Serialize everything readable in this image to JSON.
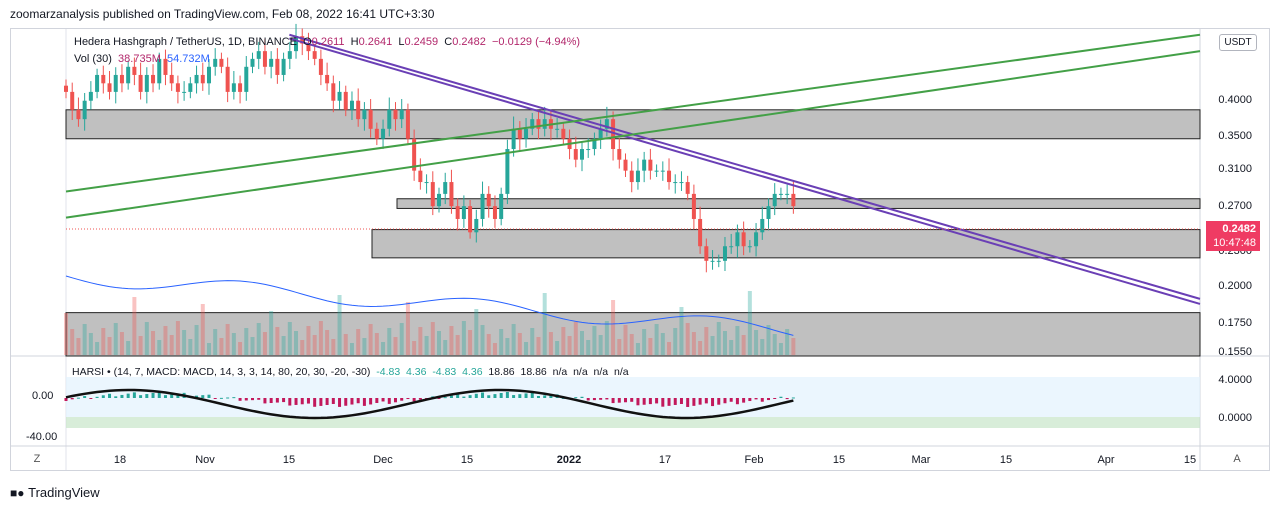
{
  "publish_line": "zoomarzanalysis published on TradingView.com, Feb 08, 2022 16:41 UTC+3:30",
  "legend": {
    "symbol": "Hedera Hashgraph / TetherUS, 1D, BINANCE",
    "open_label": "O",
    "open": "0.2611",
    "high_label": "H",
    "high": "0.2641",
    "low_label": "L",
    "low": "0.2459",
    "close_label": "C",
    "close": "0.2482",
    "change": "−0.0129 (−4.94%)",
    "vol_label": "Vol (30)",
    "vol": "38.735M",
    "vol_ma": "54.732M"
  },
  "indicator_legend": {
    "name": "HARSI",
    "params": "(14, 7, MACD: MACD, 14, 3, 3, 14, 80, 20, 30, -20, -30)",
    "values": [
      "-4.83",
      "4.36",
      "-4.83",
      "4.36",
      "18.86",
      "18.86",
      "n/a",
      "n/a",
      "n/a",
      "n/a"
    ]
  },
  "currency_button": "USDT",
  "price_axis_labels": [
    "0",
    "0.4000",
    "0.3500",
    "0.3100",
    "0.2700",
    "0.2300",
    "0.2000",
    "0.1750",
    "0.1550"
  ],
  "last_price": "0.2482",
  "countdown": "10:47:48",
  "indicator_axis_right": [
    "4.0000",
    "0.0000"
  ],
  "indicator_axis_left": [
    "0.00",
    "-40.00"
  ],
  "time_axis_labels": [
    "18",
    "Nov",
    "15",
    "Dec",
    "15",
    "2022",
    "17",
    "Feb",
    "15",
    "Mar",
    "15",
    "Apr",
    "15"
  ],
  "corner_left": "Z",
  "corner_right": "A",
  "brand": "TradingView",
  "colors": {
    "up": "#26a69a",
    "down": "#ef5350",
    "trend_purple": "#6a3fb5",
    "trend_green": "#43a047",
    "zone_gray": "#b5b5b5",
    "vol_ma": "#2962ff"
  },
  "chart_data": {
    "type": "candlestick",
    "symbol": "HBARUSDT",
    "interval": "1D",
    "ylim": [
      0.155,
      0.44
    ],
    "y_scale": "log",
    "x_start": "2021-10-04",
    "x_end": "2022-04-20",
    "candles": [],
    "series_close_approx": [
      0.36,
      0.34,
      0.33,
      0.35,
      0.36,
      0.38,
      0.37,
      0.36,
      0.38,
      0.37,
      0.39,
      0.38,
      0.36,
      0.38,
      0.37,
      0.4,
      0.38,
      0.37,
      0.36,
      0.36,
      0.37,
      0.38,
      0.37,
      0.39,
      0.4,
      0.39,
      0.36,
      0.37,
      0.36,
      0.39,
      0.4,
      0.41,
      0.39,
      0.4,
      0.38,
      0.4,
      0.41,
      0.43,
      0.42,
      0.41,
      0.4,
      0.38,
      0.37,
      0.35,
      0.36,
      0.34,
      0.35,
      0.33,
      0.34,
      0.32,
      0.31,
      0.32,
      0.34,
      0.33,
      0.34,
      0.31,
      0.28,
      0.27,
      0.27,
      0.25,
      0.26,
      0.27,
      0.25,
      0.24,
      0.25,
      0.23,
      0.24,
      0.26,
      0.25,
      0.24,
      0.26,
      0.3,
      0.32,
      0.31,
      0.32,
      0.33,
      0.32,
      0.33,
      0.32,
      0.32,
      0.31,
      0.3,
      0.29,
      0.3,
      0.3,
      0.31,
      0.32,
      0.33,
      0.3,
      0.29,
      0.28,
      0.27,
      0.28,
      0.29,
      0.28,
      0.28,
      0.28,
      0.27,
      0.27,
      0.27,
      0.26,
      0.24,
      0.22,
      0.21,
      0.21,
      0.21,
      0.22,
      0.22,
      0.23,
      0.22,
      0.22,
      0.23,
      0.24,
      0.25,
      0.26,
      0.26,
      0.26,
      0.25
    ],
    "zones": [
      {
        "from": 0.31,
        "to": 0.34
      },
      {
        "from": 0.2482,
        "to": 0.256
      },
      {
        "from": 0.212,
        "to": 0.232
      },
      {
        "from": 0.155,
        "to": 0.178
      }
    ],
    "trendlines": [
      {
        "color": "purple",
        "points": [
          [
            "2021-11-12",
            0.432
          ],
          [
            "2022-04-20",
            0.186
          ]
        ]
      },
      {
        "color": "purple",
        "points": [
          [
            "2021-11-12",
            0.427
          ],
          [
            "2022-04-20",
            0.183
          ]
        ]
      },
      {
        "color": "green",
        "points": [
          [
            "2021-10-04",
            0.262
          ],
          [
            "2022-04-20",
            0.432
          ]
        ]
      },
      {
        "color": "green",
        "points": [
          [
            "2021-10-04",
            0.241
          ],
          [
            "2022-04-20",
            0.41
          ]
        ]
      }
    ],
    "volume_series": "Vol (30)",
    "indicator": {
      "name": "HARSI",
      "range": [
        -40,
        40
      ],
      "levels": [
        4.0,
        0.0
      ]
    }
  }
}
